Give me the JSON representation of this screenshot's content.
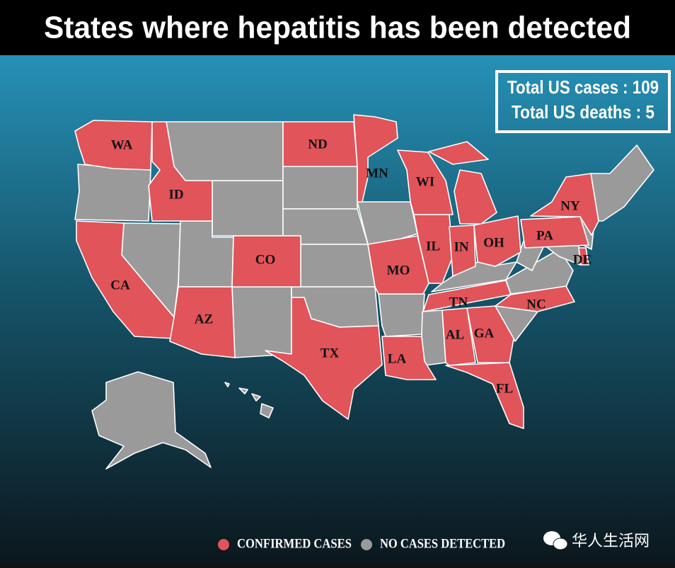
{
  "header": {
    "title": "States where hepatitis has been detected"
  },
  "totals": {
    "cases": "Total US cases : 109",
    "deaths": "Total US deaths : 5"
  },
  "states": [
    {
      "label": "WA"
    },
    {
      "label": "ID"
    },
    {
      "label": "ND"
    },
    {
      "label": "MN"
    },
    {
      "label": "WI"
    },
    {
      "label": "NY"
    },
    {
      "label": "CA"
    },
    {
      "label": "CO"
    },
    {
      "label": "IL"
    },
    {
      "label": "IN"
    },
    {
      "label": "OH"
    },
    {
      "label": "PA"
    },
    {
      "label": "DE"
    },
    {
      "label": "MO"
    },
    {
      "label": "AZ"
    },
    {
      "label": "TN"
    },
    {
      "label": "NC"
    },
    {
      "label": "TX"
    },
    {
      "label": "AL"
    },
    {
      "label": "GA"
    },
    {
      "label": "LA"
    },
    {
      "label": "FL"
    }
  ],
  "legend": [
    {
      "label": "CONFIRMED CASES",
      "color": "#e0545a"
    },
    {
      "label": "NO CASES DETECTED",
      "color": "#9a9a9a"
    }
  ],
  "watermark": "华人生活网"
}
